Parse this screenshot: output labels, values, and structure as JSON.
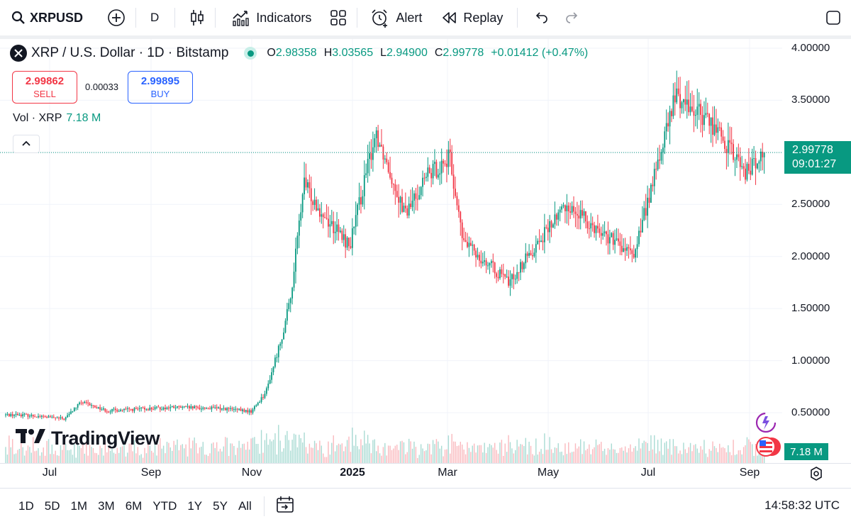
{
  "toolbar": {
    "symbol": "XRPUSD",
    "interval": "D",
    "indicators_label": "Indicators",
    "alert_label": "Alert",
    "replay_label": "Replay"
  },
  "legend": {
    "title": "XRP / U.S. Dollar · 1D · Bitstamp",
    "open_key": "O",
    "open": "2.98358",
    "high_key": "H",
    "high": "3.03565",
    "low_key": "L",
    "low": "2.94900",
    "close_key": "C",
    "close": "2.99778",
    "change": "+0.01412 (+0.47%)"
  },
  "trade": {
    "sell_price": "2.99862",
    "sell_label": "SELL",
    "spread": "0.00033",
    "buy_price": "2.99895",
    "buy_label": "BUY"
  },
  "volume_legend": {
    "label": "Vol · XRP",
    "value": "7.18 M"
  },
  "branding": {
    "logo_text": "TradingView"
  },
  "price_tag": {
    "price": "2.99778",
    "countdown": "09:01:27"
  },
  "volume_tag": "7.18 M",
  "bottom": {
    "ranges": [
      "1D",
      "5D",
      "1M",
      "3M",
      "6M",
      "YTD",
      "1Y",
      "5Y",
      "All"
    ],
    "clock": "14:58:32 UTC"
  },
  "colors": {
    "up": "#089981",
    "down": "#f23645",
    "grid": "#f0f3fa"
  },
  "chart_data": {
    "type": "candlestick",
    "title": "XRP / U.S. Dollar · 1D · Bitstamp",
    "y_axis_ticks": [
      "4.00000",
      "3.50000",
      "3.00000",
      "2.50000",
      "2.00000",
      "1.50000",
      "1.00000",
      "0.50000"
    ],
    "x_axis_ticks": [
      "Jul",
      "Sep",
      "Nov",
      "2025",
      "Mar",
      "May",
      "Jul",
      "Sep"
    ],
    "ylim": [
      0,
      4.0
    ],
    "last_close": 2.99778,
    "close_path_approx": [
      {
        "x": "2024-06-15",
        "y": 0.48
      },
      {
        "x": "2024-07-10",
        "y": 0.44
      },
      {
        "x": "2024-07-20",
        "y": 0.6
      },
      {
        "x": "2024-08-05",
        "y": 0.52
      },
      {
        "x": "2024-09-15",
        "y": 0.55
      },
      {
        "x": "2024-10-15",
        "y": 0.54
      },
      {
        "x": "2024-11-01",
        "y": 0.51
      },
      {
        "x": "2024-11-10",
        "y": 0.7
      },
      {
        "x": "2024-11-20",
        "y": 1.25
      },
      {
        "x": "2024-11-25",
        "y": 1.6
      },
      {
        "x": "2024-12-03",
        "y": 2.7
      },
      {
        "x": "2024-12-15",
        "y": 2.4
      },
      {
        "x": "2024-12-31",
        "y": 2.1
      },
      {
        "x": "2025-01-16",
        "y": 3.2
      },
      {
        "x": "2025-02-03",
        "y": 2.4
      },
      {
        "x": "2025-02-15",
        "y": 2.75
      },
      {
        "x": "2025-03-02",
        "y": 2.95
      },
      {
        "x": "2025-03-10",
        "y": 2.15
      },
      {
        "x": "2025-04-07",
        "y": 1.75
      },
      {
        "x": "2025-05-12",
        "y": 2.5
      },
      {
        "x": "2025-06-22",
        "y": 2.0
      },
      {
        "x": "2025-07-18",
        "y": 3.55
      },
      {
        "x": "2025-08-08",
        "y": 3.3
      },
      {
        "x": "2025-08-30",
        "y": 2.8
      },
      {
        "x": "2025-09-10",
        "y": 2.99778
      }
    ],
    "volume_last": "7.18 M"
  }
}
